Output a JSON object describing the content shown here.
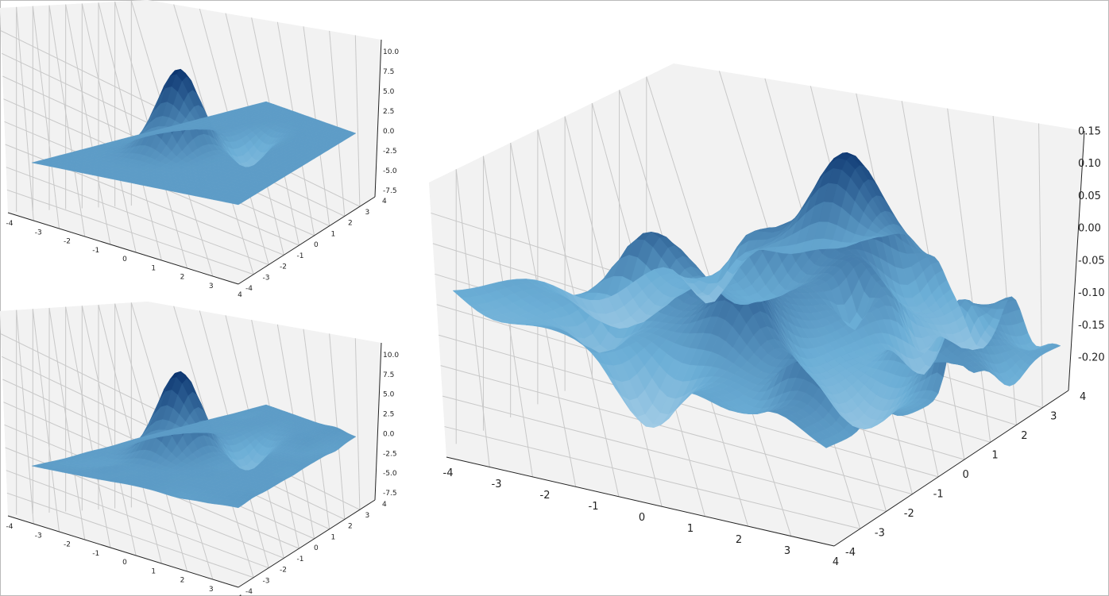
{
  "colors": {
    "pane_floor": "#f2f2f2",
    "pane_wall_left": "#f4f4f4",
    "pane_wall_back": "#eeeeee",
    "grid": "#c8c8c8",
    "axis_line": "#222222",
    "colormap": "Blues",
    "cmap_low": "#eef5fc",
    "cmap_mid": "#6baed6",
    "cmap_high": "#08306b"
  },
  "chart_data": [
    {
      "type": "surface",
      "colormap": "Blues",
      "grid": true,
      "xlim": [
        -4,
        4
      ],
      "ylim": [
        -4,
        4
      ],
      "zlim": [
        -7.5,
        10
      ],
      "x_ticks": [
        "-4",
        "-3",
        "-2",
        "-1",
        "0",
        "1",
        "2",
        "3",
        "4"
      ],
      "y_ticks": [
        "-4",
        "-3",
        "-2",
        "-1",
        "0",
        "1",
        "2",
        "3",
        "4"
      ],
      "z_ticks": [
        "-7.5",
        "-5.0",
        "-2.5",
        "0.0",
        "2.5",
        "5.0",
        "7.5",
        "10.0"
      ],
      "surface": {
        "kind": "smooth",
        "peak": 10,
        "trough": -3.5,
        "noise": 0
      }
    },
    {
      "type": "surface",
      "colormap": "Blues",
      "grid": true,
      "xlim": [
        -4,
        4
      ],
      "ylim": [
        -4,
        4
      ],
      "zlim": [
        -7.5,
        10
      ],
      "x_ticks": [
        "-4",
        "-3",
        "-2",
        "-1",
        "0",
        "1",
        "2",
        "3",
        "4"
      ],
      "y_ticks": [
        "-4",
        "-3",
        "-2",
        "-1",
        "0",
        "1",
        "2",
        "3",
        "4"
      ],
      "z_ticks": [
        "-7.5",
        "-5.0",
        "-2.5",
        "0.0",
        "2.5",
        "5.0",
        "7.5",
        "10.0"
      ],
      "surface": {
        "kind": "smooth-plus-noise",
        "peak": 10,
        "trough": -3.5,
        "noise": 0.35
      }
    },
    {
      "type": "surface",
      "colormap": "Blues",
      "grid": true,
      "xlim": [
        -4,
        4
      ],
      "ylim": [
        -4,
        4
      ],
      "zlim": [
        -0.22,
        0.18
      ],
      "x_ticks": [
        "-4",
        "-3",
        "-2",
        "-1",
        "0",
        "1",
        "2",
        "3",
        "4"
      ],
      "y_ticks": [
        "-4",
        "-3",
        "-2",
        "-1",
        "0",
        "1",
        "2",
        "3",
        "4"
      ],
      "z_ticks": [
        "-0.20",
        "-0.15",
        "-0.10",
        "-0.05",
        "0.00",
        "0.05",
        "0.10",
        "0.15"
      ],
      "surface": {
        "kind": "noise",
        "amplitude": 0.09,
        "range": [
          -0.22,
          0.18
        ]
      }
    }
  ]
}
